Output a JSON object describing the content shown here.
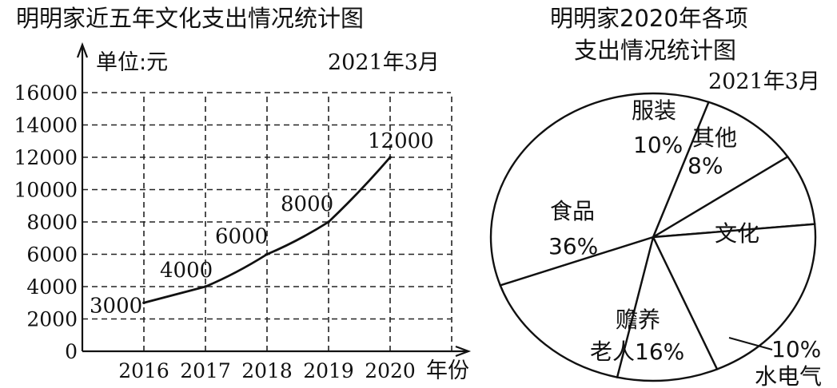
{
  "line_chart": {
    "title": "明明家近五年文化支出情况统计图",
    "date": "2021年3月",
    "ylabel": "单位:元",
    "xlabel": "年份"
  },
  "pie_chart": {
    "title_line1": "明明家2020年各项",
    "title_line2": "支出情况统计图",
    "date": "2021年3月"
  },
  "chart_data": [
    {
      "type": "line",
      "title": "明明家近五年文化支出情况统计图",
      "xlabel": "年份",
      "ylabel": "单位:元",
      "categories": [
        "2016",
        "2017",
        "2018",
        "2019",
        "2020"
      ],
      "values": [
        3000,
        4000,
        6000,
        8000,
        12000
      ],
      "yticks": [
        "0",
        "2000",
        "4000",
        "6000",
        "8000",
        "10000",
        "12000",
        "14000",
        "16000"
      ],
      "ylim": [
        0,
        16000
      ],
      "grid": true,
      "data_labels": [
        "3000",
        "4000",
        "6000",
        "8000",
        "12000"
      ]
    },
    {
      "type": "pie",
      "title": "明明家2020年各项支出情况统计图",
      "slices": [
        {
          "label": "服装",
          "percent": 10,
          "percent_text": "10%"
        },
        {
          "label": "其他",
          "percent": 8,
          "percent_text": "8%"
        },
        {
          "label": "文化",
          "percent": 20,
          "percent_text": ""
        },
        {
          "label": "水电气",
          "percent": 10,
          "percent_text": "10%"
        },
        {
          "label": "赡养老人",
          "percent": 16,
          "percent_text": "16%"
        },
        {
          "label": "食品",
          "percent": 36,
          "percent_text": "36%"
        }
      ],
      "label_lines": {
        "clothing_label": "服装",
        "clothing_pct": "10%",
        "other_label": "其他",
        "other_pct": "8%",
        "culture_label": "文化",
        "utilities_pct": "10%",
        "utilities_label": "水电气",
        "elder_line1": "赡养",
        "elder_line2": "老人16%",
        "food_label": "食品",
        "food_pct": "36%"
      }
    }
  ]
}
